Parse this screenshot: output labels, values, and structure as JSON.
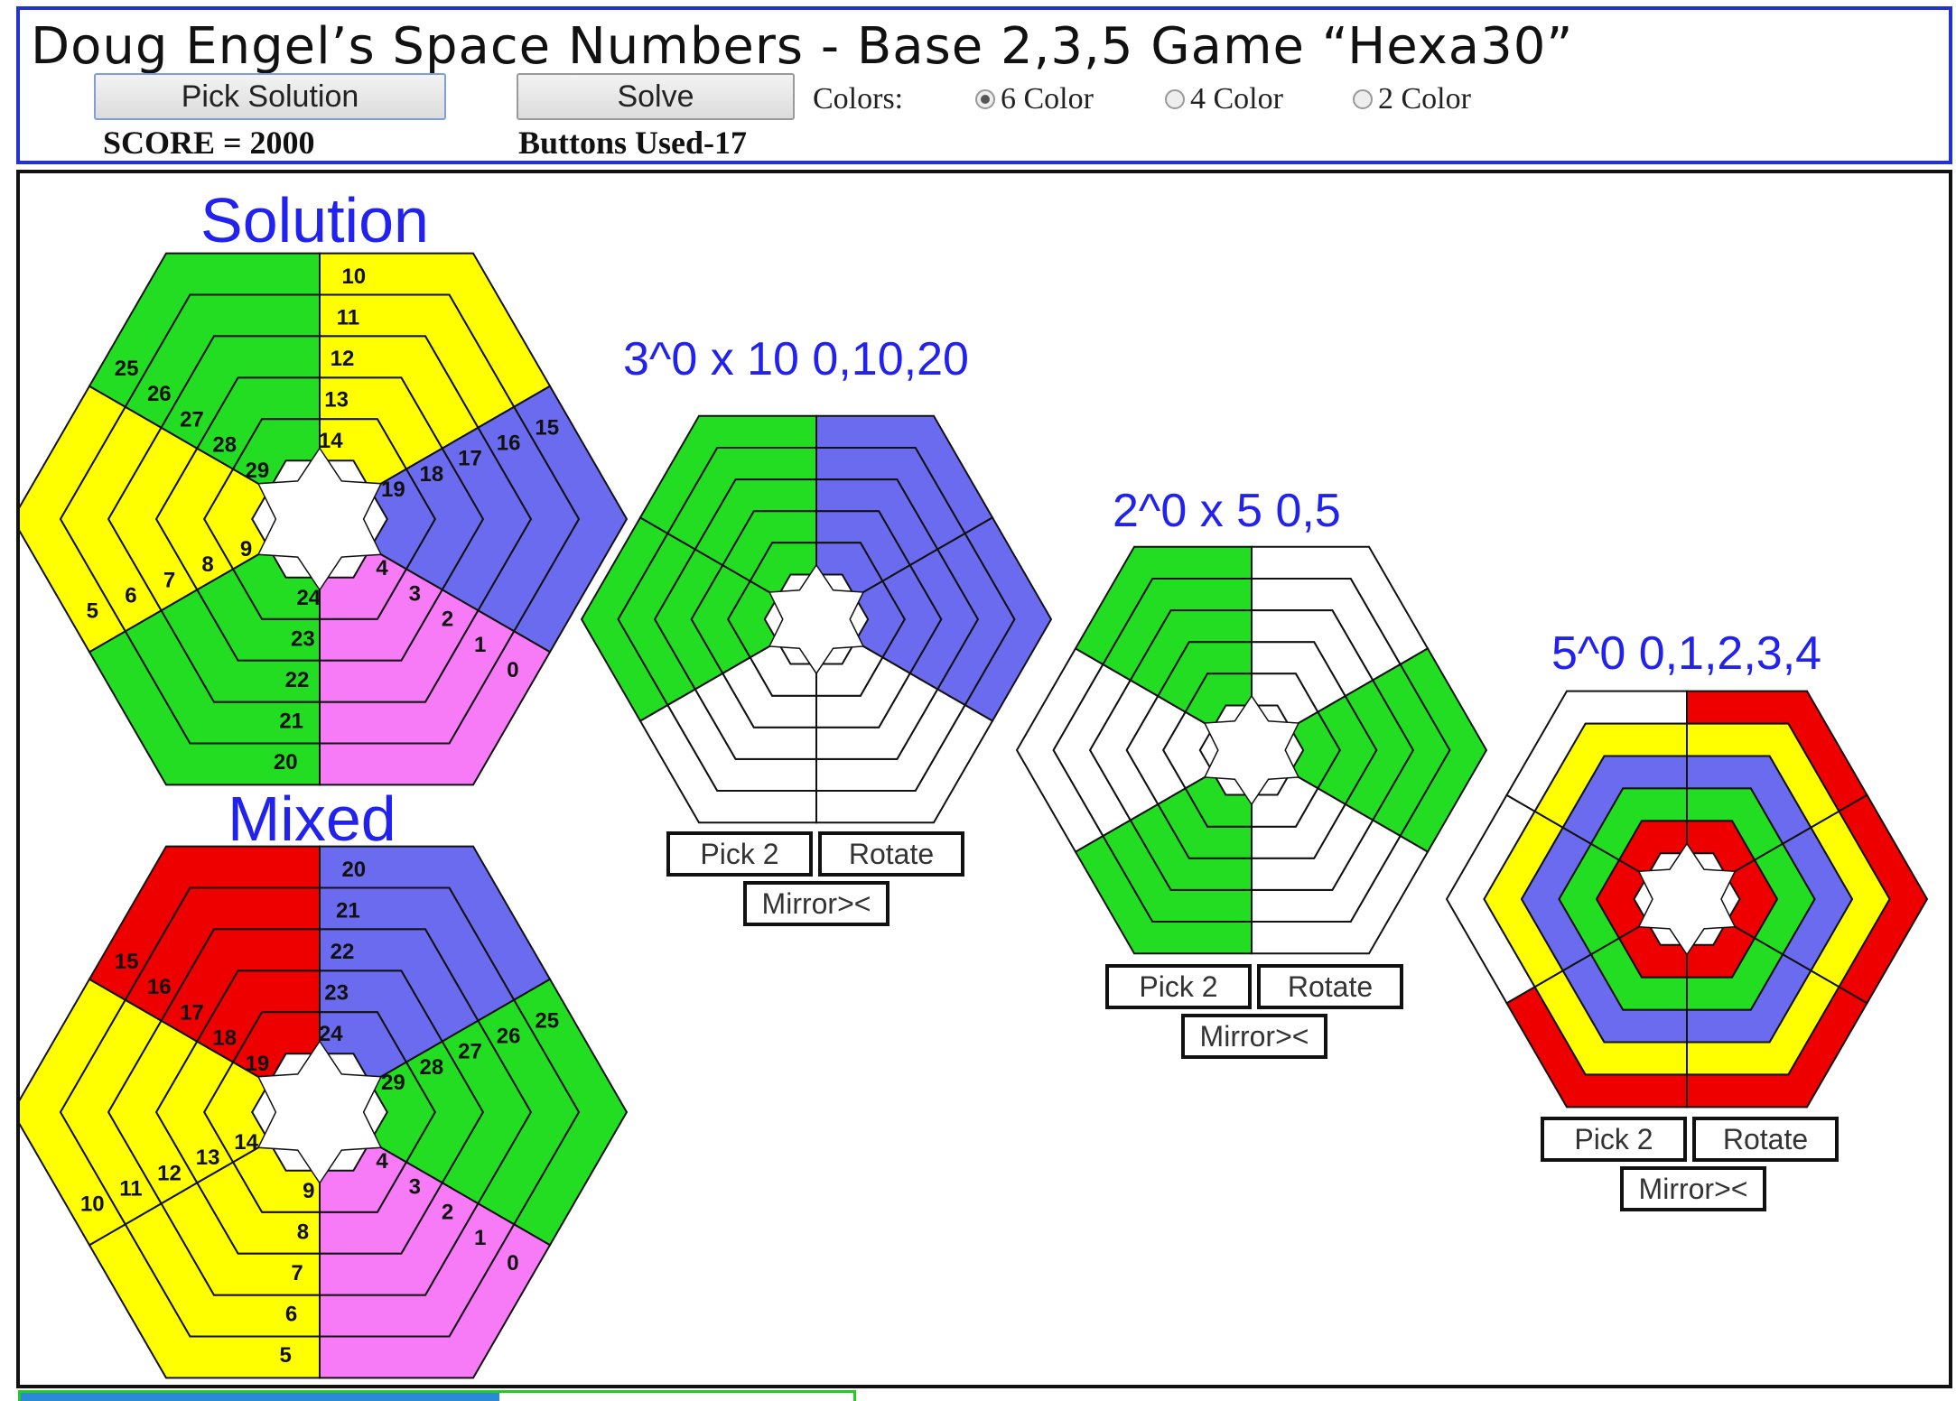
{
  "header": {
    "title": "Doug Engel’s Space Numbers - Base 2,3,5 Game  “Hexa30”",
    "pick_solution_label": "Pick Solution",
    "solve_label": "Solve",
    "score": "SCORE = 2000",
    "buttons_used": "Buttons Used-17",
    "colors_label": "Colors:",
    "color_options": [
      {
        "label": "6 Color",
        "selected": true
      },
      {
        "label": "4 Color",
        "selected": false
      },
      {
        "label": "2 Color",
        "selected": false
      }
    ]
  },
  "palette": {
    "green": "#22dd22",
    "yellow": "#ffff00",
    "red": "#ee0000",
    "blue": "#6b6bf0",
    "pink": "#f77af7",
    "white": "#ffffff",
    "heading": "#2222ee",
    "header_border": "#2233cc"
  },
  "solution": {
    "heading": "Solution",
    "sector_colors": [
      "green",
      "yellow",
      "blue",
      "pink",
      "blue",
      "yellow"
    ],
    "number_sequence": [
      "0",
      "1",
      "2",
      "3",
      "4",
      "5",
      "6",
      "7",
      "8",
      "9",
      "10",
      "11",
      "12",
      "13",
      "14",
      "15",
      "16",
      "17",
      "18",
      "19",
      "20",
      "21",
      "22",
      "23",
      "24",
      "25",
      "26",
      "27",
      "28",
      "29"
    ]
  },
  "mixed": {
    "heading": "Mixed",
    "sector_colors": [
      "blue",
      "green",
      "pink",
      "yellow",
      "yellow",
      "red"
    ],
    "numbers": [
      "20",
      "21",
      "22",
      "23",
      "24",
      "25",
      "26",
      "27",
      "28",
      "29",
      "0",
      "1",
      "2",
      "3",
      "4",
      "5",
      "6",
      "7",
      "8",
      "9",
      "10",
      "11",
      "12",
      "13",
      "14",
      "15",
      "16",
      "17",
      "18",
      "19"
    ]
  },
  "puzzles": [
    {
      "heading": "3^0 x 10  0,10,20",
      "sector_colors": [
        "blue",
        "white",
        "green"
      ],
      "pick2_label": "Pick 2",
      "rotate_label": "Rotate",
      "mirror_label": "Mirror><"
    },
    {
      "heading": "2^0 x 5  0,5",
      "sector_colors": [
        "white",
        "green"
      ],
      "pick2_label": "Pick 2",
      "rotate_label": "Rotate",
      "mirror_label": "Mirror><"
    },
    {
      "heading": "5^0  0,1,2,3,4",
      "ring_colors": [
        "red",
        "yellow",
        "blue",
        "green",
        "white"
      ],
      "pick2_label": "Pick 2",
      "rotate_label": "Rotate",
      "mirror_label": "Mirror><"
    }
  ]
}
